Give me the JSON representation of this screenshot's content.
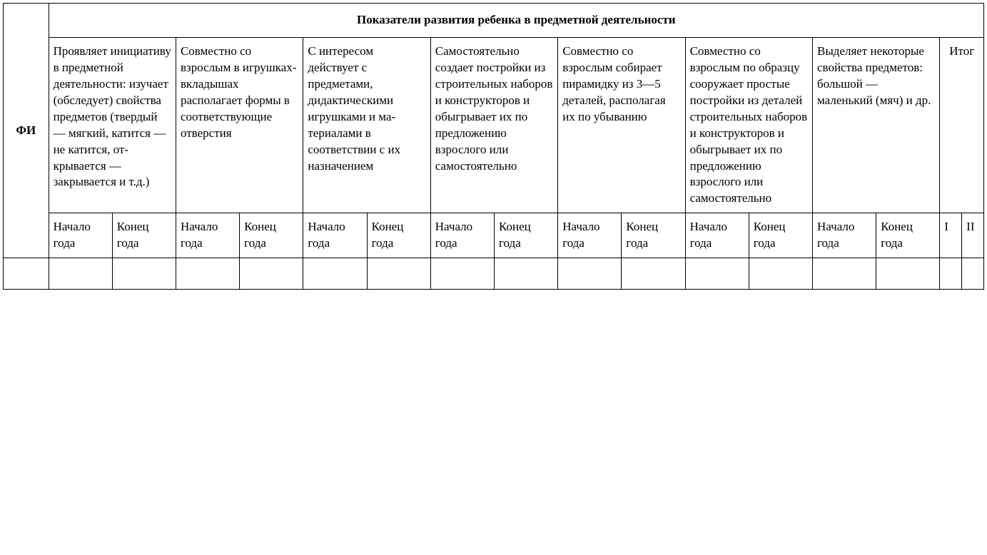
{
  "table": {
    "row_label": "ФИ",
    "main_header": "Показатели развития ребенка в предметной деятельности",
    "criteria": [
      "Проявляет инициативу в предметной деятельно­сти: изучает (обследует) свойства предметов (твердый — мягкий, ка­тится — не катится, от­крывается — закрывается и т.д.)",
      "Совместно со взрослым в игрушках-вкладышах располагает формы в соот­ветствующие отверстия",
      "С интересом действует с предметами, дидактиче­скими игруш­ками и ма­териалами в соответствии с их назначе­нием",
      "Самостоя­тельно созда­ет постройки из строитель­ных наборов и конструк­торов и обы­грывает их по предложению взрослого или самостоятель­но",
      "Совместно со взрослым собирает пи­рамидку из 3—5 деталей, располагая их по убыванию",
      "Совместно со взрослым по образцу сооружает простые по­стройки из деталей стро­ительных на­боров и кон­структоров и обыгрывает их по пред­ложению взрослого или самосто­ятельно",
      "Выделяет некоторые свойства предметов: большой — маленький (мяч) и др."
    ],
    "itog_header": "Итог",
    "sub_start": "На­чало года",
    "sub_end": "Конец года",
    "itog_cols": [
      "I",
      "II"
    ]
  }
}
